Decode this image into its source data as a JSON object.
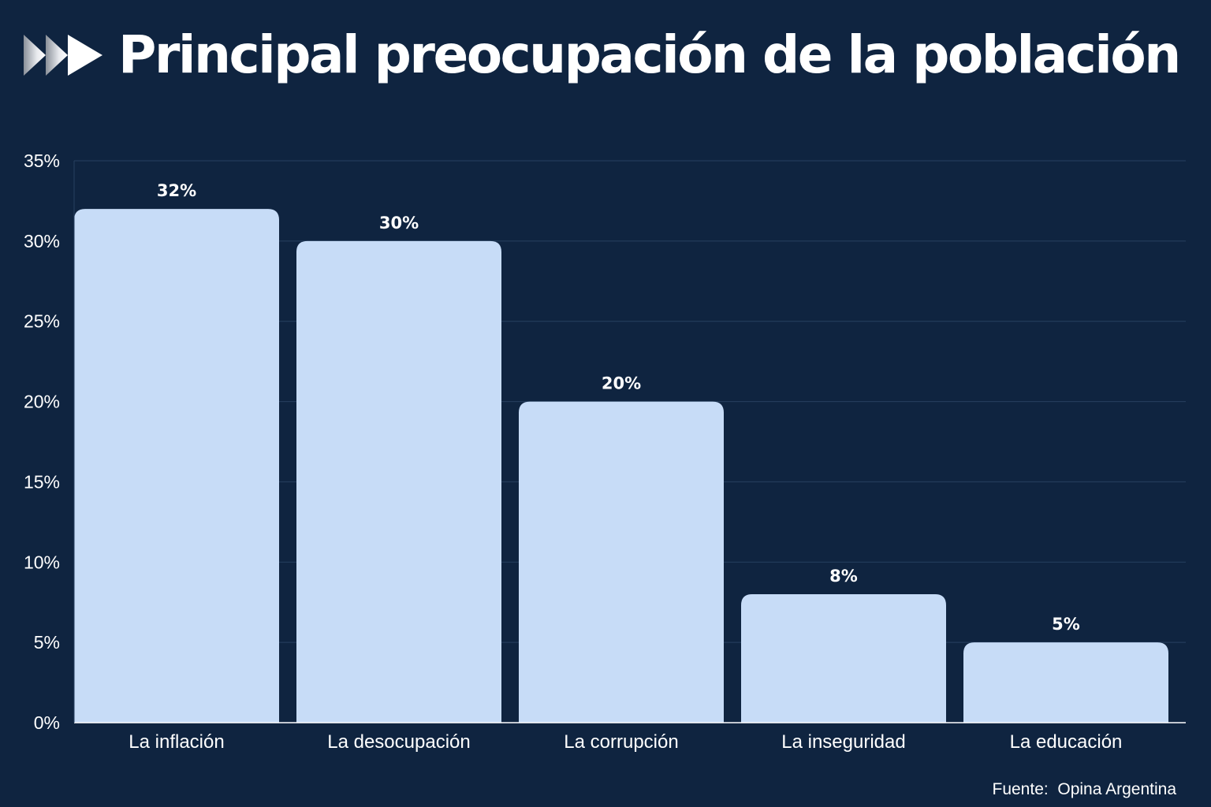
{
  "header": {
    "logo_icon": "triple-chevron-right-icon"
  },
  "chart_data": {
    "type": "bar",
    "title": "Principal preocupación de la población",
    "xlabel": "",
    "ylabel": "",
    "ylim": [
      0,
      35
    ],
    "yticks": [
      "0%",
      "5%",
      "10%",
      "15%",
      "20%",
      "25%",
      "30%",
      "35%"
    ],
    "categories": [
      "La inflación",
      "La desocupación",
      "La corrupción",
      "La inseguridad",
      "La educación"
    ],
    "values": [
      32,
      30,
      20,
      8,
      5
    ],
    "data_labels": [
      "32%",
      "30%",
      "20%",
      "8%",
      "5%"
    ],
    "grid": true,
    "legend": "none"
  },
  "colors": {
    "background": "#0f2440",
    "bar": "#c7dcf7",
    "text": "#ffffff",
    "grid": "#27405f"
  },
  "source": "Fuente:  Opina Argentina"
}
